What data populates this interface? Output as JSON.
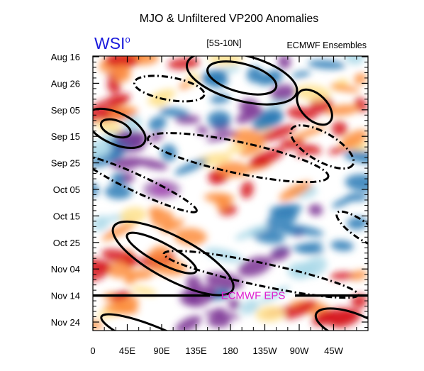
{
  "chart_data": {
    "type": "heatmap",
    "title": "MJO & Unfiltered VP200 Anomalies",
    "region": "[5S-10N]",
    "source": "ECMWF Ensembles",
    "logo": "WSI",
    "logo_mark": "o",
    "forecast_label": "ECMWF EPS",
    "forecast_start": "Nov 14",
    "x_ticks": [
      "0",
      "45E",
      "90E",
      "135E",
      "180",
      "135W",
      "90W",
      "45W"
    ],
    "x_tick_lon": [
      0,
      45,
      90,
      135,
      180,
      225,
      270,
      315
    ],
    "xlim": [
      0,
      360
    ],
    "y_ticks": [
      "Aug 16",
      "Aug 26",
      "Sep 05",
      "Sep 15",
      "Sep 25",
      "Oct 05",
      "Oct 15",
      "Oct 25",
      "Nov 04",
      "Nov 14",
      "Nov 24"
    ],
    "y_axis_direction": "time increases downward",
    "colors": {
      "positive_strong": "#d7191c",
      "positive": "#fd8d3c",
      "positive_weak": "#fee08b",
      "negative_weak": "#abd9e9",
      "negative": "#2c7bb6",
      "negative_strong": "#7b3294",
      "extreme_negative": "#f08ef0",
      "forecast_label": "#e020d0",
      "logo": "#1a1adc"
    }
  }
}
